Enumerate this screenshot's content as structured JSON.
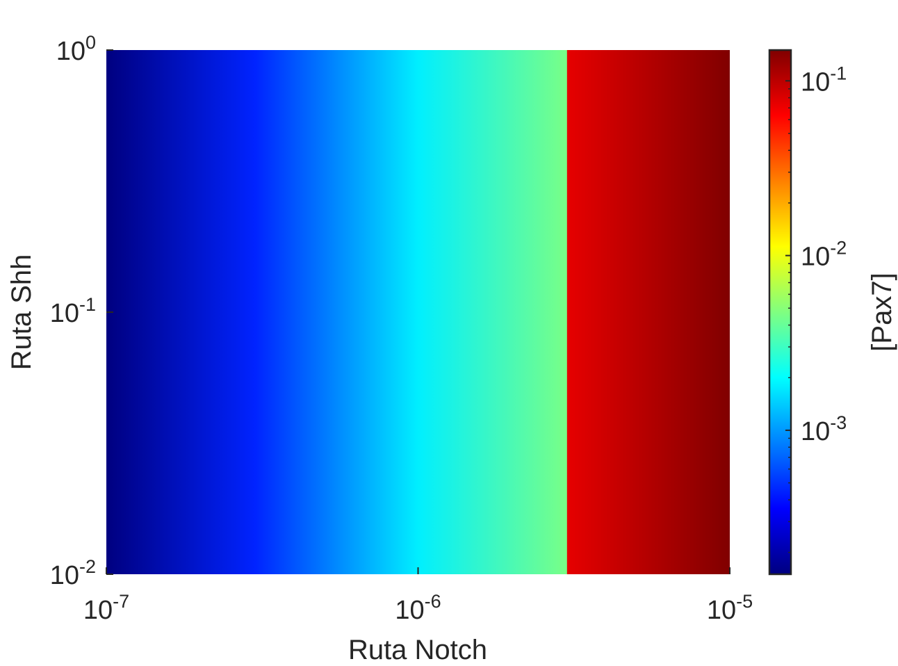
{
  "chart_data": {
    "type": "heatmap",
    "title": "",
    "xlabel": "Ruta Notch",
    "ylabel": "Ruta Shh",
    "colorbar_label": "[Pax7]",
    "x_scale": "log",
    "y_scale": "log",
    "color_scale": "log",
    "xlim": [
      1e-07,
      1e-05
    ],
    "ylim": [
      0.01,
      1
    ],
    "clim": [
      0.00015,
      0.15
    ],
    "colormap": "jet",
    "grid": false,
    "x_ticks": [
      {
        "base": "10",
        "exp": "-7"
      },
      {
        "base": "10",
        "exp": "-6"
      },
      {
        "base": "10",
        "exp": "-5"
      }
    ],
    "y_ticks": [
      {
        "base": "10",
        "exp": "-2"
      },
      {
        "base": "10",
        "exp": "-1"
      },
      {
        "base": "10",
        "exp": "0"
      }
    ],
    "colorbar_ticks": [
      {
        "base": "10",
        "exp": "-3"
      },
      {
        "base": "10",
        "exp": "-2"
      },
      {
        "base": "10",
        "exp": "-1"
      }
    ],
    "notch_values": [
      1e-07,
      3e-07,
      1e-06,
      3e-06,
      3.01e-06,
      1e-05
    ],
    "pax7_values": [
      0.00015,
      0.00045,
      0.0018,
      0.0045,
      0.075,
      0.15
    ],
    "note_y_dependence": "none"
  }
}
